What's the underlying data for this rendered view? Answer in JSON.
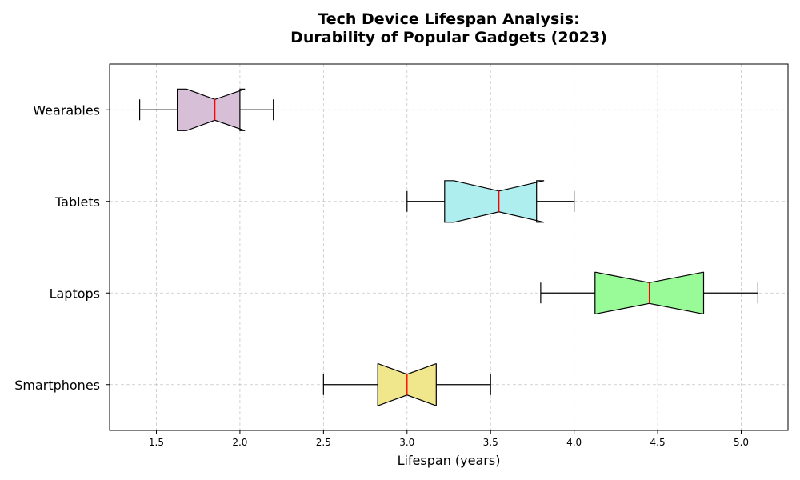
{
  "chart_data": {
    "type": "boxplot",
    "orientation": "horizontal",
    "notched": true,
    "title_line1": "Tech Device Lifespan Analysis:",
    "title_line2": "Durability of Popular Gadgets (2023)",
    "xlabel": "Lifespan (years)",
    "ylabel": "",
    "xlim": [
      1.22,
      5.28
    ],
    "xticks": [
      "1.5",
      "2.0",
      "2.5",
      "3.0",
      "3.5",
      "4.0",
      "4.5",
      "5.0"
    ],
    "grid": true,
    "median_color": "#ff0000",
    "categories": [
      "Smartphones",
      "Laptops",
      "Tablets",
      "Wearables"
    ],
    "boxes": [
      {
        "category": "Smartphones",
        "whisker_low": 2.5,
        "q1": 2.825,
        "median": 3.0,
        "q3": 3.175,
        "whisker_high": 3.5,
        "notch_low": 2.83,
        "notch_high": 3.17,
        "color": "#f0e68c"
      },
      {
        "category": "Laptops",
        "whisker_low": 3.8,
        "q1": 4.125,
        "median": 4.45,
        "q3": 4.775,
        "whisker_high": 5.1,
        "notch_low": 4.13,
        "notch_high": 4.77,
        "color": "#98fb98"
      },
      {
        "category": "Tablets",
        "whisker_low": 3.0,
        "q1": 3.225,
        "median": 3.55,
        "q3": 3.775,
        "whisker_high": 4.0,
        "notch_low": 3.28,
        "notch_high": 3.82,
        "color": "#afeeee"
      },
      {
        "category": "Wearables",
        "whisker_low": 1.4,
        "q1": 1.625,
        "median": 1.85,
        "q3": 2.0,
        "whisker_high": 2.2,
        "notch_low": 1.68,
        "notch_high": 2.03,
        "color": "#d8bfd8"
      }
    ]
  }
}
